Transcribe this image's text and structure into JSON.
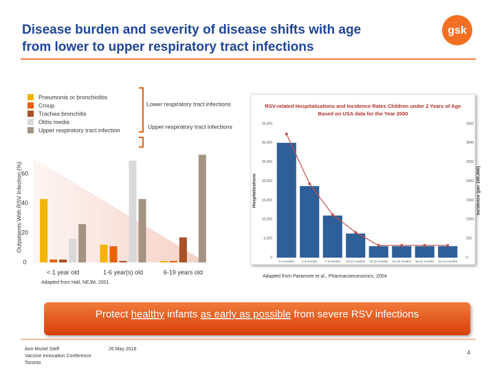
{
  "header": {
    "title_lines": [
      "Disease burden and severity of disease shifts with age",
      "from lower to upper respiratory tract infections"
    ],
    "logo": "gsk"
  },
  "chart_data": [
    {
      "type": "bar",
      "y_label": "Outpatients With RSV Infection (%)",
      "categories": [
        "< 1 year old",
        "1-6 year(s) old",
        "6-19 years old"
      ],
      "series": [
        {
          "name": "Pneumonia or bronchiolitis",
          "color": "#f5b400",
          "values": [
            43,
            12,
            1
          ]
        },
        {
          "name": "Croup",
          "color": "#e8620c",
          "values": [
            2,
            11,
            1
          ]
        },
        {
          "name": "Trachea bronchitis",
          "color": "#a8522a",
          "values": [
            2,
            1,
            17
          ]
        },
        {
          "name": "Otitis media",
          "color": "#d9d9d9",
          "values": [
            16,
            69,
            1
          ]
        },
        {
          "name": "Upper respiratory tract infection",
          "color": "#a39383",
          "values": [
            26,
            43,
            73
          ]
        }
      ],
      "groups": [
        "Lower respiratory tract infections",
        "Upper respiratory tract infections"
      ],
      "ylim": [
        0,
        75
      ],
      "yticks": [
        0,
        20,
        40,
        60
      ],
      "grid": false,
      "source": "Adapted from Hall, NEJM, 2001"
    },
    {
      "type": "bar",
      "title_lines": [
        "RSV-related Hospitalizations and Incidence Rates Children under 2 Years of Age",
        "Based on USA data for the Year 2000"
      ],
      "y_label": "Hospitalizations",
      "y2_label": "Incidence (per 100,000)",
      "categories": [
        "0-3 months",
        "4-6 months",
        "7-9 months",
        "10-12 months",
        "13-15 months",
        "16-18 months",
        "19-21 months",
        "22-24 months"
      ],
      "series": [
        {
          "name": "Hospitalizations",
          "color": "#2f5f98",
          "values": [
            30000,
            18700,
            11000,
            6300,
            3000,
            3000,
            3000,
            3000
          ]
        },
        {
          "name": "Incidence",
          "type": "line",
          "axis": "y2",
          "color": "#c0504d",
          "values": [
            3230,
            1930,
            1125,
            660,
            320,
            320,
            320,
            320
          ]
        }
      ],
      "ylim": [
        0,
        35000
      ],
      "yticks": [
        {
          "value": 0,
          "label": "0"
        },
        {
          "value": 5000,
          "label": "5,000"
        },
        {
          "value": 10000,
          "label": "10,000"
        },
        {
          "value": 15000,
          "label": "15,000"
        },
        {
          "value": 20000,
          "label": "20,000"
        },
        {
          "value": 25000,
          "label": "25,000"
        },
        {
          "value": 30000,
          "label": "30,000"
        },
        {
          "value": 35000,
          "label": "35,000"
        }
      ],
      "y2lim": [
        0,
        3500
      ],
      "y2ticks": [
        0,
        500,
        1000,
        1500,
        2000,
        2500,
        3000,
        3500
      ],
      "source": "Adapted from Paramore et al., Pharmacoeconomics, 2004"
    }
  ],
  "banner": {
    "parts": [
      "Protect ",
      "healthy",
      " infants ",
      "as early as possible",
      " from severe RSV infections"
    ]
  },
  "footer": {
    "lines": [
      "Ann-Muriel Steff",
      "Vaccine Innovation Conference",
      "Toronto"
    ],
    "date": "26 May 2016",
    "page": "4"
  }
}
